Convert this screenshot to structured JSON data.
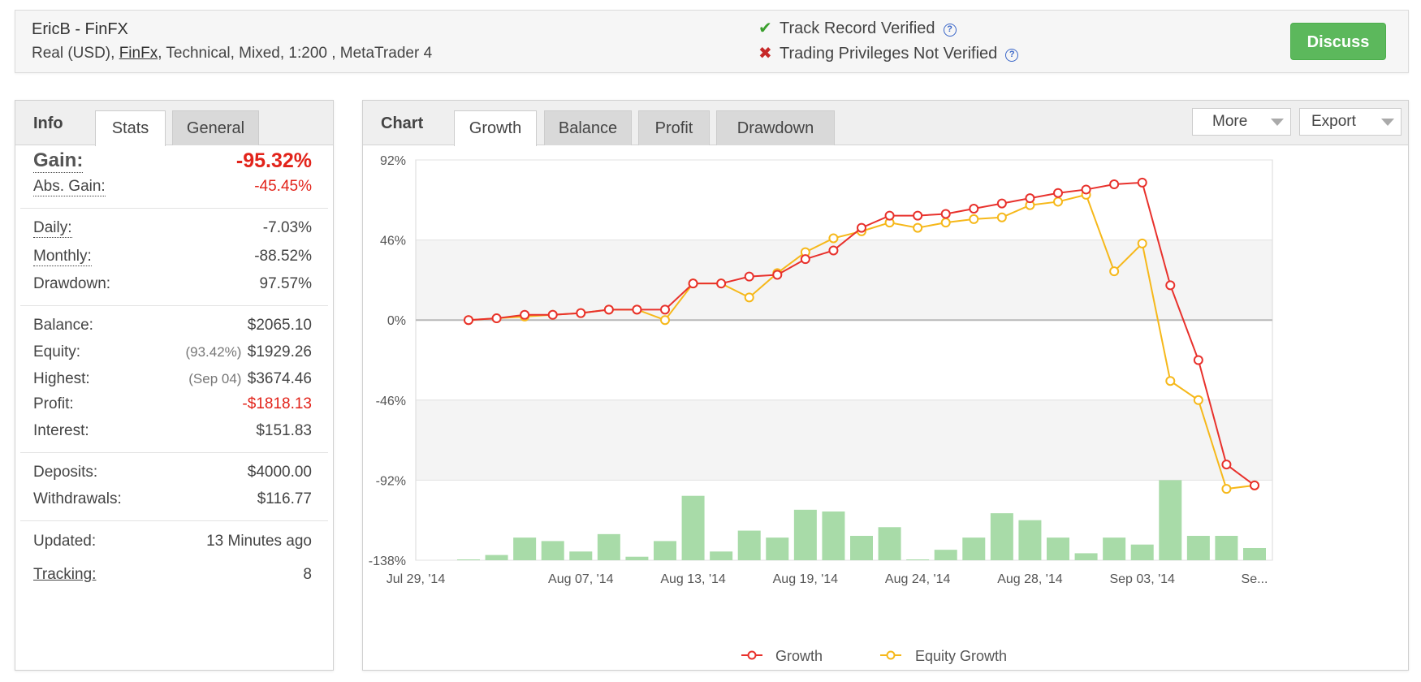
{
  "header": {
    "title": "EricB - FinFX",
    "subtitle_pre": "Real (USD), ",
    "subtitle_link": "FinFx",
    "subtitle_post": ", Technical, Mixed, 1:200 , MetaTrader 4",
    "track_record": "Track Record Verified",
    "trading_privileges": "Trading Privileges Not Verified",
    "help_glyph": "?",
    "discuss_label": "Discuss"
  },
  "info": {
    "title": "Info",
    "tabs": [
      "Stats",
      "General"
    ],
    "gain": {
      "label": "Gain:",
      "value": "-95.32%"
    },
    "abs_gain": {
      "label": "Abs. Gain:",
      "value": "-45.45%"
    },
    "daily": {
      "label": "Daily:",
      "value": "-7.03%"
    },
    "monthly": {
      "label": "Monthly:",
      "value": "-88.52%"
    },
    "drawdown": {
      "label": "Drawdown:",
      "value": "97.57%"
    },
    "balance": {
      "label": "Balance:",
      "value": "$2065.10"
    },
    "equity": {
      "label": "Equity:",
      "note": "(93.42%)",
      "value": "$1929.26"
    },
    "highest": {
      "label": "Highest:",
      "note": "(Sep 04)",
      "value": "$3674.46"
    },
    "profit": {
      "label": "Profit:",
      "value": "-$1818.13"
    },
    "interest": {
      "label": "Interest:",
      "value": "$151.83"
    },
    "deposits": {
      "label": "Deposits:",
      "value": "$4000.00"
    },
    "withdrawals": {
      "label": "Withdrawals:",
      "value": "$116.77"
    },
    "updated": {
      "label": "Updated:",
      "value": "13 Minutes ago"
    },
    "tracking": {
      "label": "Tracking:",
      "value": "8"
    }
  },
  "chart_panel": {
    "title": "Chart",
    "tabs": [
      "Growth",
      "Balance",
      "Profit",
      "Drawdown"
    ],
    "more_label": "More",
    "export_label": "Export"
  },
  "colors": {
    "growth": "#e8312c",
    "equity_growth": "#f6b81a",
    "bars": "#a8dba8",
    "discuss": "#5cb85c",
    "negative": "#e2231a"
  },
  "chart_data": {
    "type": "line",
    "ylim": [
      -138,
      92
    ],
    "y_ticks": [
      "92%",
      "46%",
      "0%",
      "-46%",
      "-92%",
      "-138%"
    ],
    "x_tick_labels": [
      "Jul 29, '14",
      "Aug 07, '14",
      "Aug 13, '14",
      "Aug 19, '14",
      "Aug 24, '14",
      "Aug 28, '14",
      "Sep 03, '14",
      "Se..."
    ],
    "x_tick_index": [
      0,
      4,
      8,
      12,
      16,
      20,
      24,
      28
    ],
    "grid": true,
    "legend_position": "bottom-center",
    "series": [
      {
        "name": "Growth",
        "values": [
          0,
          1,
          3,
          3,
          4,
          6,
          6,
          6,
          21,
          21,
          25,
          26,
          35,
          40,
          53,
          60,
          60,
          61,
          64,
          67,
          70,
          73,
          75,
          78,
          79,
          20,
          -23,
          -83,
          -95
        ]
      },
      {
        "name": "Equity Growth",
        "values": [
          0,
          1,
          2,
          3,
          4,
          6,
          6,
          0,
          21,
          21,
          13,
          27,
          39,
          47,
          51,
          56,
          53,
          56,
          58,
          59,
          66,
          68,
          72,
          28,
          44,
          -35,
          -46,
          -97,
          -95
        ]
      }
    ],
    "volume_bars": [
      0,
      3,
      13,
      11,
      5,
      15,
      2,
      11,
      37,
      5,
      17,
      13,
      29,
      28,
      14,
      19,
      0,
      6,
      13,
      27,
      23,
      13,
      4,
      13,
      9,
      46,
      14,
      14,
      7
    ]
  }
}
